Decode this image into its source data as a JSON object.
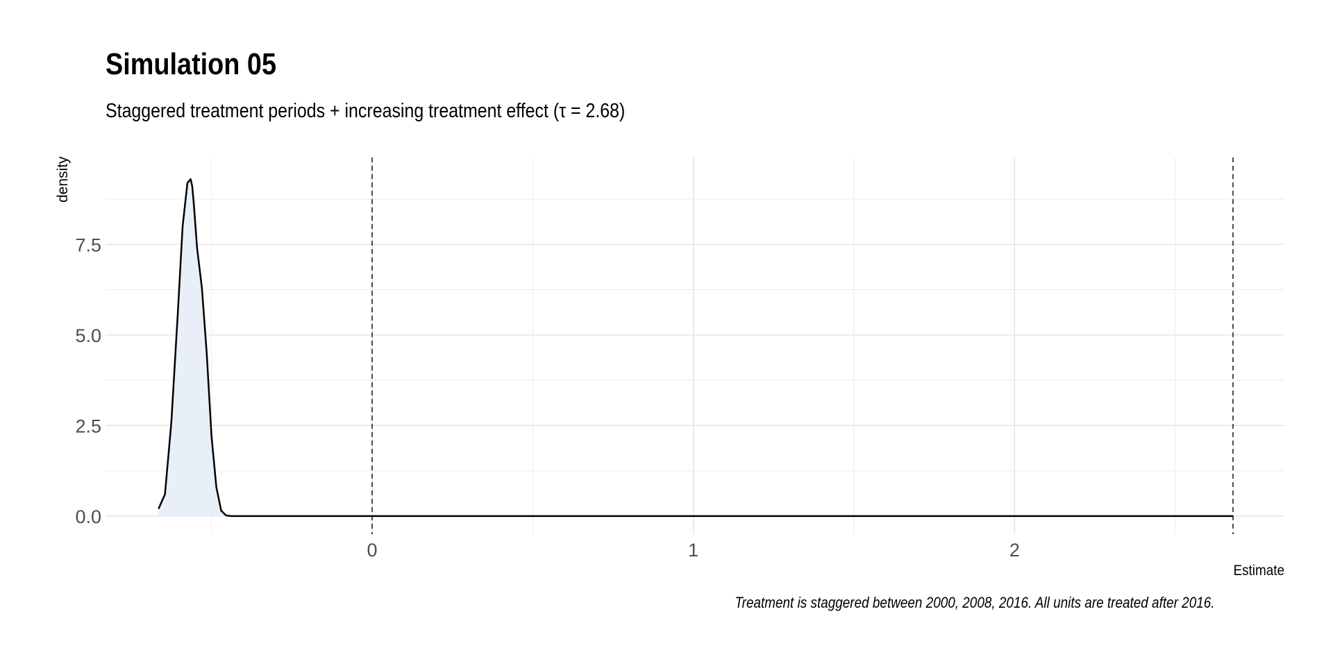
{
  "chart_data": {
    "type": "area",
    "title": "Simulation 05",
    "subtitle": "Staggered treatment periods + increasing treatment effect (τ = 2.68)",
    "caption": "Treatment is staggered between 2000, 2008, 2016. All units are treated after 2016.",
    "xlabel": "Estimate",
    "ylabel": "density",
    "xlim": [
      -0.83,
      2.84
    ],
    "ylim": [
      -0.5,
      9.9
    ],
    "x_ticks": [
      "0",
      "1",
      "2"
    ],
    "x_tick_values": [
      0,
      1,
      2
    ],
    "y_ticks": [
      "0.0",
      "2.5",
      "5.0",
      "7.5"
    ],
    "y_tick_values": [
      0,
      2.5,
      5,
      7.5
    ],
    "reference_lines": [
      0,
      2.68
    ],
    "grid": true,
    "fill_color": "#e8eff7",
    "line_color": "#000000",
    "series": [
      {
        "x": [
          -0.665,
          -0.645,
          -0.625,
          -0.605,
          -0.59,
          -0.575,
          -0.565,
          -0.56,
          -0.555,
          -0.545,
          -0.53,
          -0.515,
          -0.5,
          -0.485,
          -0.47,
          -0.455,
          -0.44,
          -0.425,
          -0.41,
          2.68
        ],
        "y": [
          0.2,
          0.6,
          2.6,
          5.6,
          8.0,
          9.2,
          9.3,
          9.1,
          8.6,
          7.4,
          6.3,
          4.5,
          2.2,
          0.8,
          0.15,
          0.02,
          0.0,
          0.0,
          0.0,
          0.0
        ]
      }
    ]
  }
}
